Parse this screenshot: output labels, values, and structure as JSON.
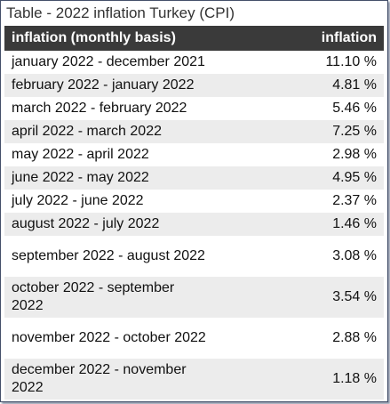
{
  "title": "Table - 2022 inflation Turkey (CPI)",
  "table": {
    "headers": [
      "inflation (monthly basis)",
      "inflation"
    ],
    "rows": [
      [
        "january 2022 - december 2021",
        "11.10 %"
      ],
      [
        "february 2022 - january 2022",
        "4.81 %"
      ],
      [
        "march 2022 - february 2022",
        "5.46 %"
      ],
      [
        "april 2022 - march 2022",
        "7.25 %"
      ],
      [
        "may 2022 - april 2022",
        "2.98 %"
      ],
      [
        "june 2022 - may 2022",
        "4.95 %"
      ],
      [
        "july 2022 - june 2022",
        "2.37 %"
      ],
      [
        "august 2022 - july 2022",
        "1.46 %"
      ],
      [
        "september 2022 - august 2022",
        "3.08 %"
      ],
      [
        "october 2022 - september 2022",
        "3.54 %"
      ],
      [
        "november 2022 - october 2022",
        "2.88 %"
      ],
      [
        "december 2022 - november 2022",
        "1.18 %"
      ]
    ]
  }
}
